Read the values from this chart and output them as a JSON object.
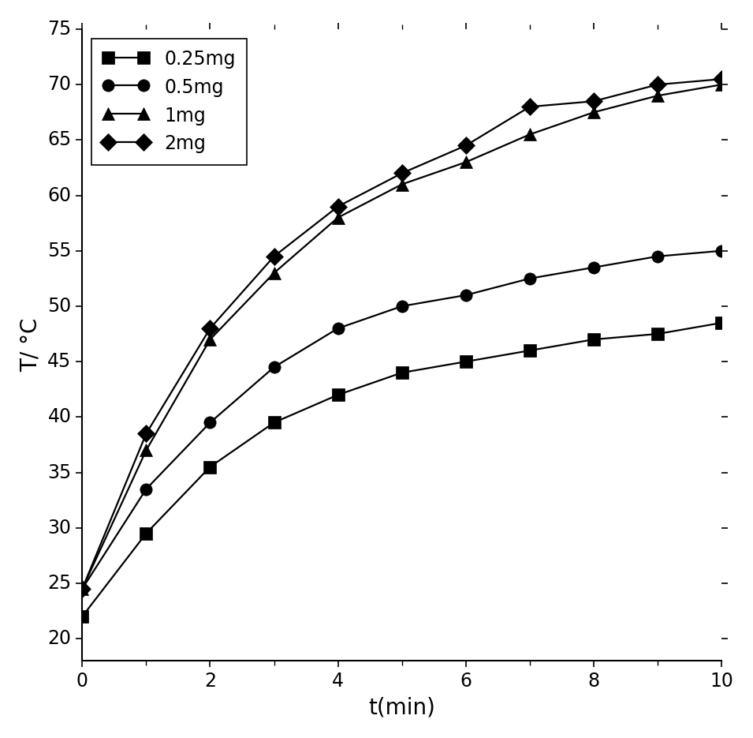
{
  "xlabel": "t(min)",
  "ylabel": "T/ °C",
  "xlim": [
    0,
    10
  ],
  "ylim": [
    18,
    75
  ],
  "xticks": [
    0,
    2,
    4,
    6,
    8,
    10
  ],
  "yticks": [
    20,
    25,
    30,
    35,
    40,
    45,
    50,
    55,
    60,
    65,
    70,
    75
  ],
  "series": [
    {
      "label": "0.25mg",
      "marker": "s",
      "color": "black",
      "x": [
        0,
        1,
        2,
        3,
        4,
        5,
        6,
        7,
        8,
        9,
        10
      ],
      "y": [
        22,
        29.5,
        35.5,
        39.5,
        42,
        44,
        45,
        46,
        47,
        47.5,
        48.5
      ]
    },
    {
      "label": "0.5mg",
      "marker": "o",
      "color": "black",
      "x": [
        0,
        1,
        2,
        3,
        4,
        5,
        6,
        7,
        8,
        9,
        10
      ],
      "y": [
        24.5,
        33.5,
        39.5,
        44.5,
        48,
        50,
        51,
        52.5,
        53.5,
        54.5,
        55
      ]
    },
    {
      "label": "1mg",
      "marker": "^",
      "color": "black",
      "x": [
        0,
        1,
        2,
        3,
        4,
        5,
        6,
        7,
        8,
        9,
        10
      ],
      "y": [
        24.5,
        37,
        47,
        53,
        58,
        61,
        63,
        65.5,
        67.5,
        69,
        70
      ]
    },
    {
      "label": "2mg",
      "marker": "D",
      "color": "black",
      "x": [
        0,
        1,
        2,
        3,
        4,
        5,
        6,
        7,
        8,
        9,
        10
      ],
      "y": [
        24.5,
        38.5,
        48,
        54.5,
        59,
        62,
        64.5,
        68,
        68.5,
        70,
        70.5
      ]
    }
  ],
  "marker_size": 11,
  "line_width": 1.6,
  "legend_fontsize": 17,
  "axis_label_fontsize": 20,
  "tick_fontsize": 17,
  "background_color": "#ffffff"
}
